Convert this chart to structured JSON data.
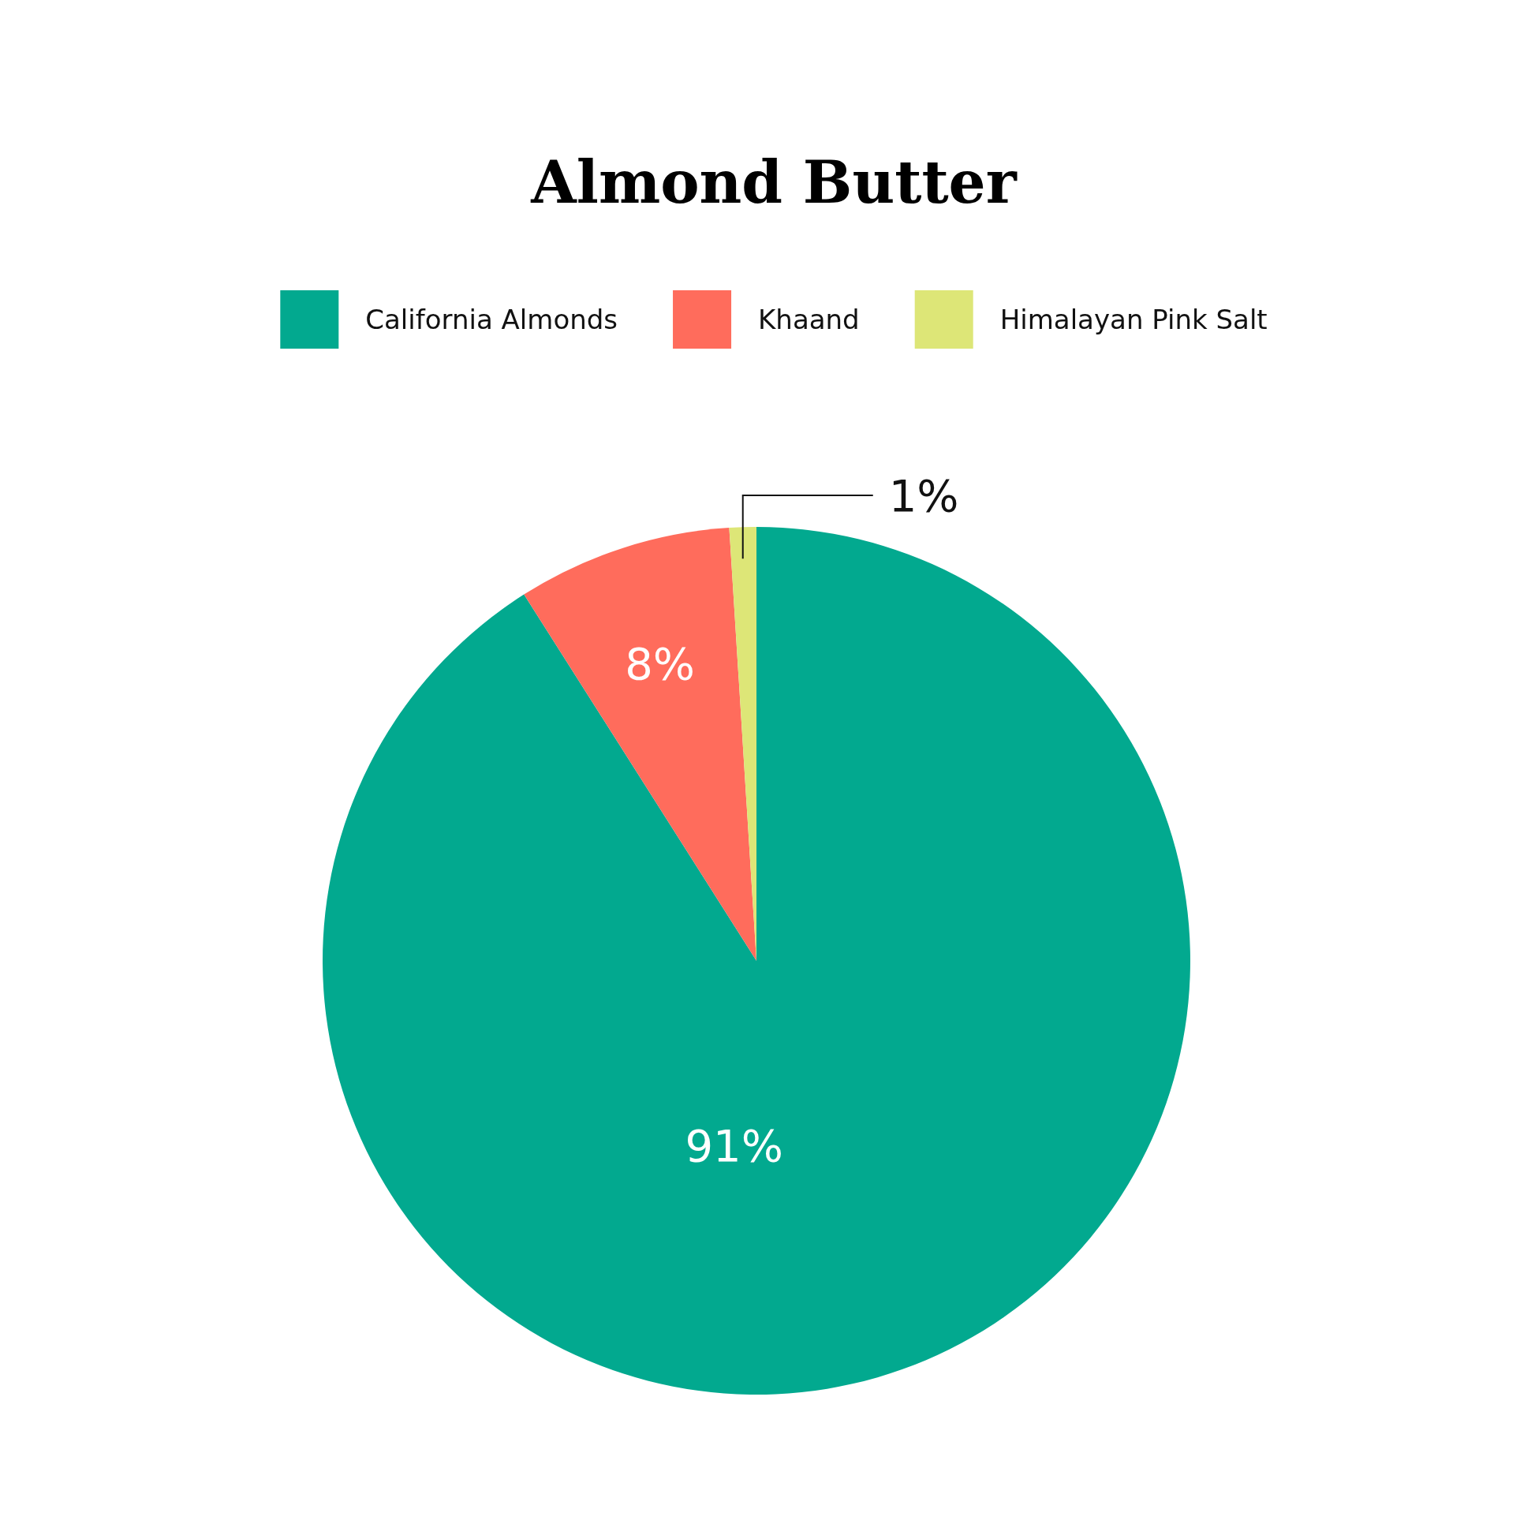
{
  "chart_data": {
    "type": "pie",
    "title": "Almond Butter",
    "categories": [
      "California Almonds",
      "Khaand",
      "Himalayan Pink Salt"
    ],
    "values": [
      91,
      8,
      1
    ],
    "colors": [
      "#02a98f",
      "#ff6c5c",
      "#dde677"
    ],
    "legend": "top",
    "value_labels": [
      "91%",
      "8%",
      "1%"
    ]
  }
}
